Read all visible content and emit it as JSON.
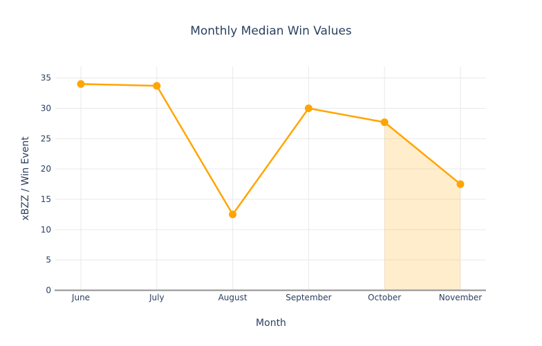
{
  "chart_data": {
    "type": "line",
    "title": "Monthly Median Win Values",
    "xlabel": "Month",
    "ylabel": "xBZZ / Win Event",
    "categories": [
      "June",
      "July",
      "August",
      "September",
      "October",
      "November"
    ],
    "values": [
      34,
      33.7,
      12.5,
      30,
      27.7,
      17.5
    ],
    "ylim": [
      0,
      36.9
    ],
    "yticks": [
      0,
      5,
      10,
      15,
      20,
      25,
      30,
      35
    ],
    "grid": true,
    "legend": false,
    "line_color": "#FFA500",
    "marker_color": "#FFA500",
    "marker_size": 5.5,
    "line_width": 2.5,
    "fill_region": {
      "from_category": "October",
      "to_category": "November",
      "fill_color": "rgba(255,165,0,0.2)"
    },
    "background_color": "#FFFFFF",
    "grid_color": "#E9E9E9",
    "axis_line_color": "#909090",
    "text_color": "#2a3f5f"
  }
}
